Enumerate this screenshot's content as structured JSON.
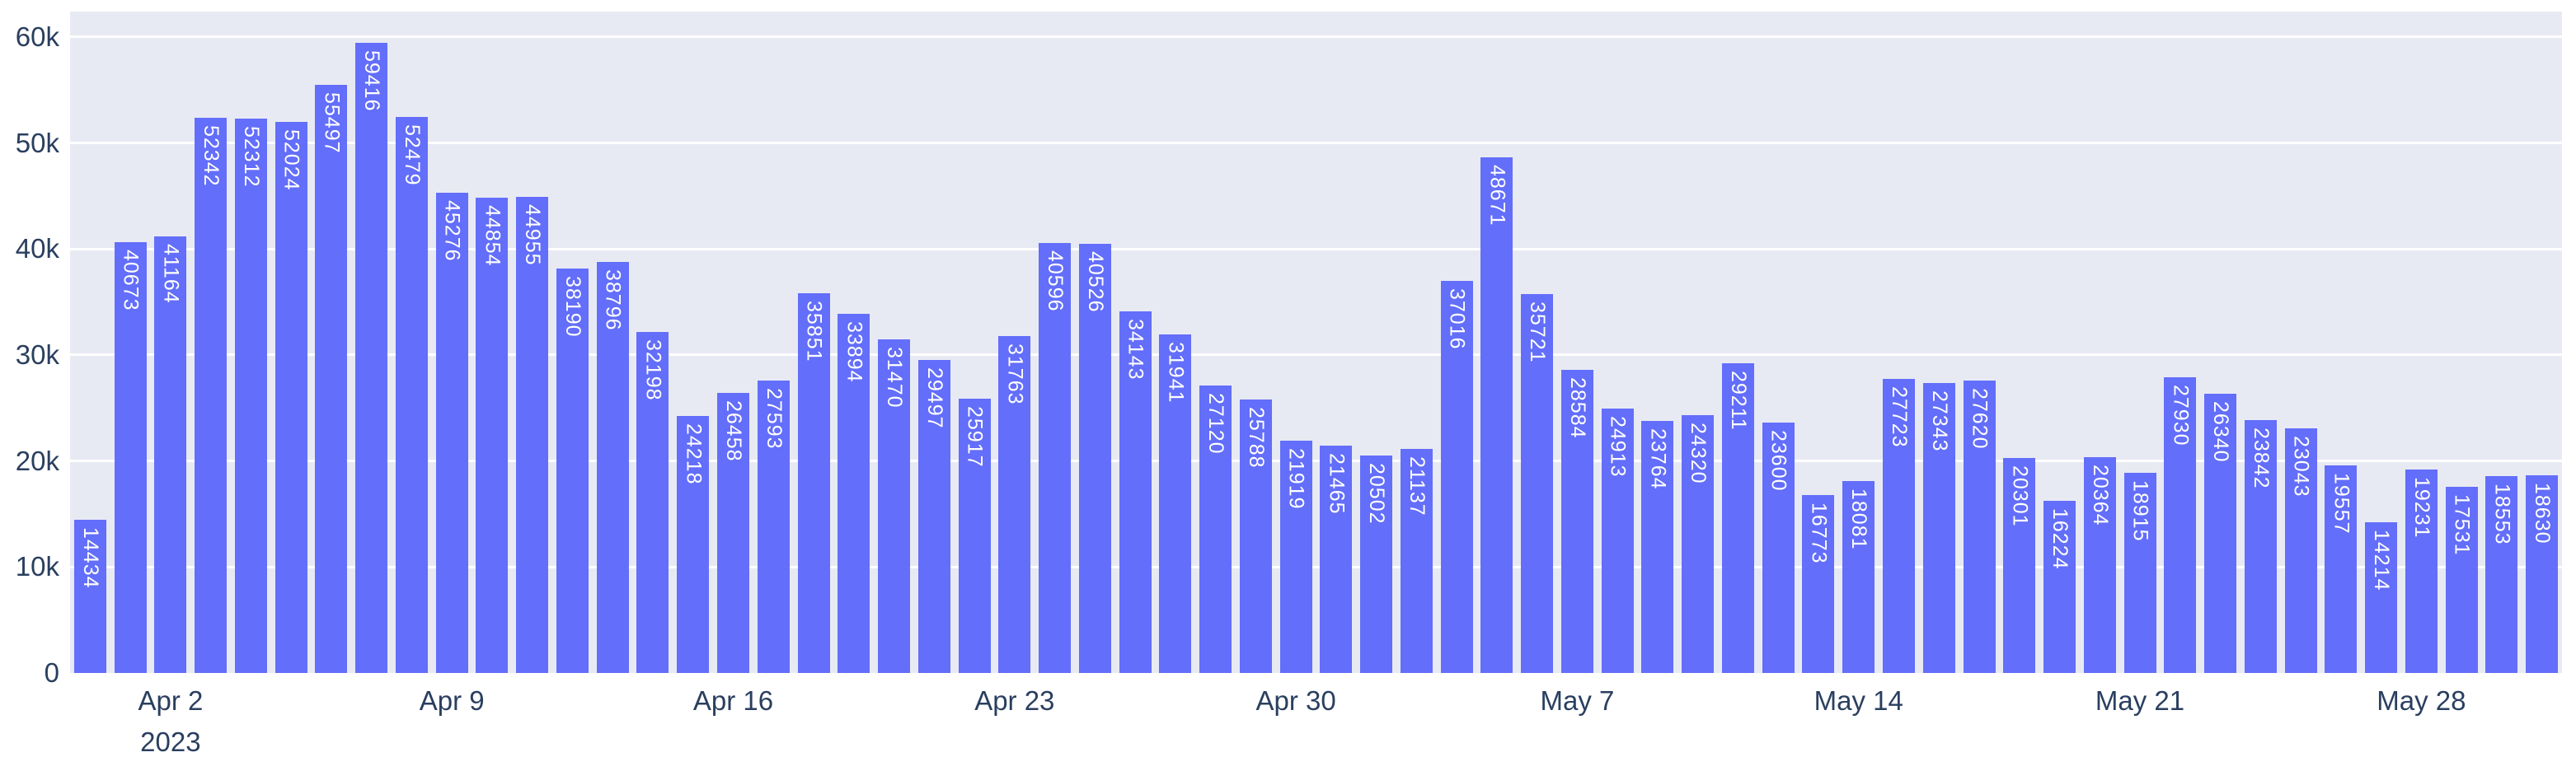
{
  "style": {
    "page_background": "#ffffff",
    "plot_background": "#e8eaf3",
    "bar_color": "#636efa",
    "bar_label_color": "#ffffff",
    "grid_color": "#ffffff",
    "tick_text_color": "#2a3f5f"
  },
  "chart_data": {
    "type": "bar",
    "title": "",
    "xlabel": "",
    "ylabel": "",
    "grid": true,
    "legend": "none",
    "bar_value_labels": "inside-top, rotated 90deg, white",
    "ylim": [
      0,
      62400
    ],
    "yticks": [
      {
        "label": "0",
        "value": 0
      },
      {
        "label": "10k",
        "value": 10000
      },
      {
        "label": "20k",
        "value": 20000
      },
      {
        "label": "30k",
        "value": 30000
      },
      {
        "label": "40k",
        "value": 40000
      },
      {
        "label": "50k",
        "value": 50000
      },
      {
        "label": "60k",
        "value": 60000
      }
    ],
    "xticks": [
      {
        "label": "Apr 2",
        "index": 2
      },
      {
        "label": "Apr 9",
        "index": 9
      },
      {
        "label": "Apr 16",
        "index": 16
      },
      {
        "label": "Apr 23",
        "index": 23
      },
      {
        "label": "Apr 30",
        "index": 30
      },
      {
        "label": "May 7",
        "index": 37
      },
      {
        "label": "May 14",
        "index": 44
      },
      {
        "label": "May 21",
        "index": 51
      },
      {
        "label": "May 28",
        "index": 58
      }
    ],
    "year_label": "2023",
    "year_tick_index": 2,
    "x": [
      "2023-03-31",
      "2023-04-01",
      "2023-04-02",
      "2023-04-03",
      "2023-04-04",
      "2023-04-05",
      "2023-04-06",
      "2023-04-07",
      "2023-04-08",
      "2023-04-09",
      "2023-04-10",
      "2023-04-11",
      "2023-04-12",
      "2023-04-13",
      "2023-04-14",
      "2023-04-15",
      "2023-04-16",
      "2023-04-17",
      "2023-04-18",
      "2023-04-19",
      "2023-04-20",
      "2023-04-21",
      "2023-04-22",
      "2023-04-23",
      "2023-04-24",
      "2023-04-25",
      "2023-04-26",
      "2023-04-27",
      "2023-04-28",
      "2023-04-29",
      "2023-04-30",
      "2023-05-01",
      "2023-05-02",
      "2023-05-03",
      "2023-05-04",
      "2023-05-05",
      "2023-05-06",
      "2023-05-07",
      "2023-05-08",
      "2023-05-09",
      "2023-05-10",
      "2023-05-11",
      "2023-05-12",
      "2023-05-13",
      "2023-05-14",
      "2023-05-15",
      "2023-05-16",
      "2023-05-17",
      "2023-05-18",
      "2023-05-19",
      "2023-05-20",
      "2023-05-21",
      "2023-05-22",
      "2023-05-23",
      "2023-05-24",
      "2023-05-25",
      "2023-05-26",
      "2023-05-27",
      "2023-05-28",
      "2023-05-29",
      "2023-05-30",
      "2023-05-31"
    ],
    "values": [
      14434,
      40673,
      41164,
      52342,
      52312,
      52024,
      55497,
      59416,
      52479,
      45276,
      44854,
      44955,
      38190,
      38796,
      32198,
      24218,
      26458,
      27593,
      35851,
      33894,
      31470,
      29497,
      25917,
      31763,
      40596,
      40526,
      34143,
      31941,
      27120,
      25788,
      21919,
      21465,
      20502,
      21137,
      37016,
      48671,
      35721,
      28584,
      24913,
      23764,
      24320,
      29211,
      23600,
      16773,
      18081,
      27723,
      27343,
      27620,
      20301,
      16224,
      20364,
      18915,
      27930,
      26340,
      23842,
      23043,
      19557,
      14214,
      19231,
      17531,
      18553,
      18630
    ]
  }
}
